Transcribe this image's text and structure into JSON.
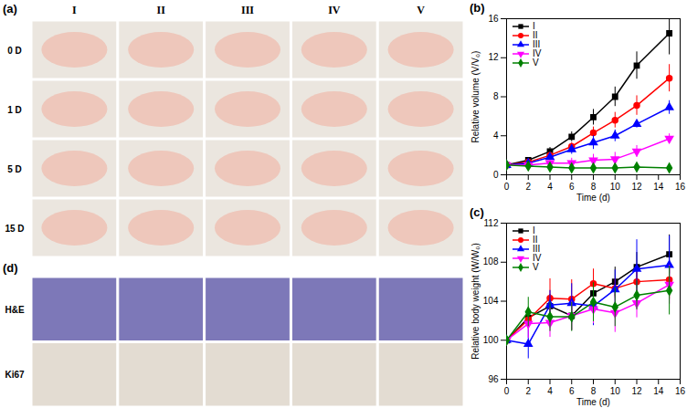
{
  "chart_data": [
    {
      "type": "line",
      "title": "(b)",
      "x_label": "Time (d)",
      "y_label": "Relative volume (V/V₀)",
      "x": [
        0,
        2,
        4,
        6,
        8,
        10,
        12,
        15
      ],
      "xlim": [
        0,
        16
      ],
      "xticks": [
        0,
        2,
        4,
        6,
        8,
        10,
        12,
        14,
        16
      ],
      "ylim": [
        0,
        16
      ],
      "yticks": [
        0,
        4,
        8,
        12,
        16
      ],
      "grid": false,
      "legend": "upper left",
      "series": [
        {
          "name": "I",
          "color": "#000000",
          "marker": "square",
          "values": [
            1,
            1.5,
            2.4,
            3.9,
            5.9,
            8.0,
            11.2,
            14.5
          ],
          "errors": [
            0,
            0.2,
            0.4,
            0.5,
            0.8,
            1.0,
            1.4,
            2.2
          ]
        },
        {
          "name": "II",
          "color": "#ff0000",
          "marker": "circle",
          "values": [
            1,
            1.3,
            2.0,
            2.9,
            4.3,
            5.6,
            7.1,
            9.9
          ],
          "errors": [
            0,
            0.2,
            0.3,
            0.4,
            0.6,
            0.8,
            1.0,
            1.4
          ]
        },
        {
          "name": "III",
          "color": "#0000ff",
          "marker": "triangle",
          "values": [
            1,
            1.2,
            1.8,
            2.6,
            3.3,
            4.0,
            5.2,
            6.9
          ],
          "errors": [
            0,
            0.2,
            0.3,
            0.5,
            0.7,
            0.6,
            0.4,
            0.7
          ]
        },
        {
          "name": "IV",
          "color": "#ff00ff",
          "marker": "triangle-down",
          "values": [
            1,
            1.0,
            1.2,
            1.2,
            1.5,
            1.6,
            2.4,
            3.7
          ],
          "errors": [
            0,
            0.1,
            0.3,
            0.5,
            0.6,
            0.7,
            0.6,
            0.5
          ]
        },
        {
          "name": "V",
          "color": "#008000",
          "marker": "diamond",
          "values": [
            1,
            0.9,
            0.8,
            0.7,
            0.7,
            0.7,
            0.8,
            0.7
          ],
          "errors": [
            0,
            0.1,
            0.1,
            0.1,
            0.1,
            0.1,
            0.1,
            0.1
          ]
        }
      ]
    },
    {
      "type": "line",
      "title": "(c)",
      "x_label": "Time (d)",
      "y_label": "Relative body weight (W/W₀)",
      "x": [
        0,
        2,
        4,
        6,
        8,
        10,
        12,
        15
      ],
      "xlim": [
        0,
        16
      ],
      "xticks": [
        0,
        2,
        4,
        6,
        8,
        10,
        12,
        14,
        16
      ],
      "ylim": [
        96,
        112
      ],
      "yticks": [
        96,
        100,
        104,
        108,
        112
      ],
      "grid": false,
      "legend": "upper left",
      "series": [
        {
          "name": "I",
          "color": "#000000",
          "marker": "square",
          "values": [
            100,
            102.3,
            103.5,
            102.5,
            104.8,
            106,
            107.5,
            108.8
          ],
          "errors": [
            0.5,
            1,
            1.2,
            1.5,
            1.5,
            1.5,
            1.5,
            2
          ]
        },
        {
          "name": "II",
          "color": "#ff0000",
          "marker": "circle",
          "values": [
            100,
            102.1,
            104.3,
            104.2,
            105.8,
            105.3,
            106,
            106.2
          ],
          "errors": [
            0,
            1,
            2,
            2,
            1.5,
            1,
            1.5,
            2
          ]
        },
        {
          "name": "III",
          "color": "#0000ff",
          "marker": "triangle",
          "values": [
            100,
            99.6,
            103.6,
            103.8,
            103.5,
            105.2,
            107.3,
            107.7
          ],
          "errors": [
            0,
            1.5,
            1.5,
            2,
            2,
            2,
            3,
            3
          ]
        },
        {
          "name": "IV",
          "color": "#ff00ff",
          "marker": "triangle-down",
          "values": [
            100,
            101.7,
            101.8,
            102.5,
            103.2,
            102.8,
            103.8,
            105.7
          ],
          "errors": [
            0,
            1.5,
            1.5,
            1.5,
            1.5,
            2,
            1.5,
            2
          ]
        },
        {
          "name": "V",
          "color": "#008000",
          "marker": "diamond",
          "values": [
            100,
            102.9,
            102.4,
            102.4,
            103.9,
            103.4,
            104.6,
            105.1
          ],
          "errors": [
            0,
            1.5,
            1.5,
            1.5,
            2,
            2,
            1.5,
            2.5
          ]
        }
      ]
    }
  ],
  "image_panels": {
    "panel_a": {
      "label": "(a)",
      "columns": [
        "I",
        "II",
        "III",
        "IV",
        "V"
      ],
      "rows": [
        "0 D",
        "1 D",
        "5 D",
        "15 D"
      ]
    },
    "panel_d": {
      "label": "(d)",
      "rows": [
        "H&E",
        "Ki67"
      ]
    }
  }
}
